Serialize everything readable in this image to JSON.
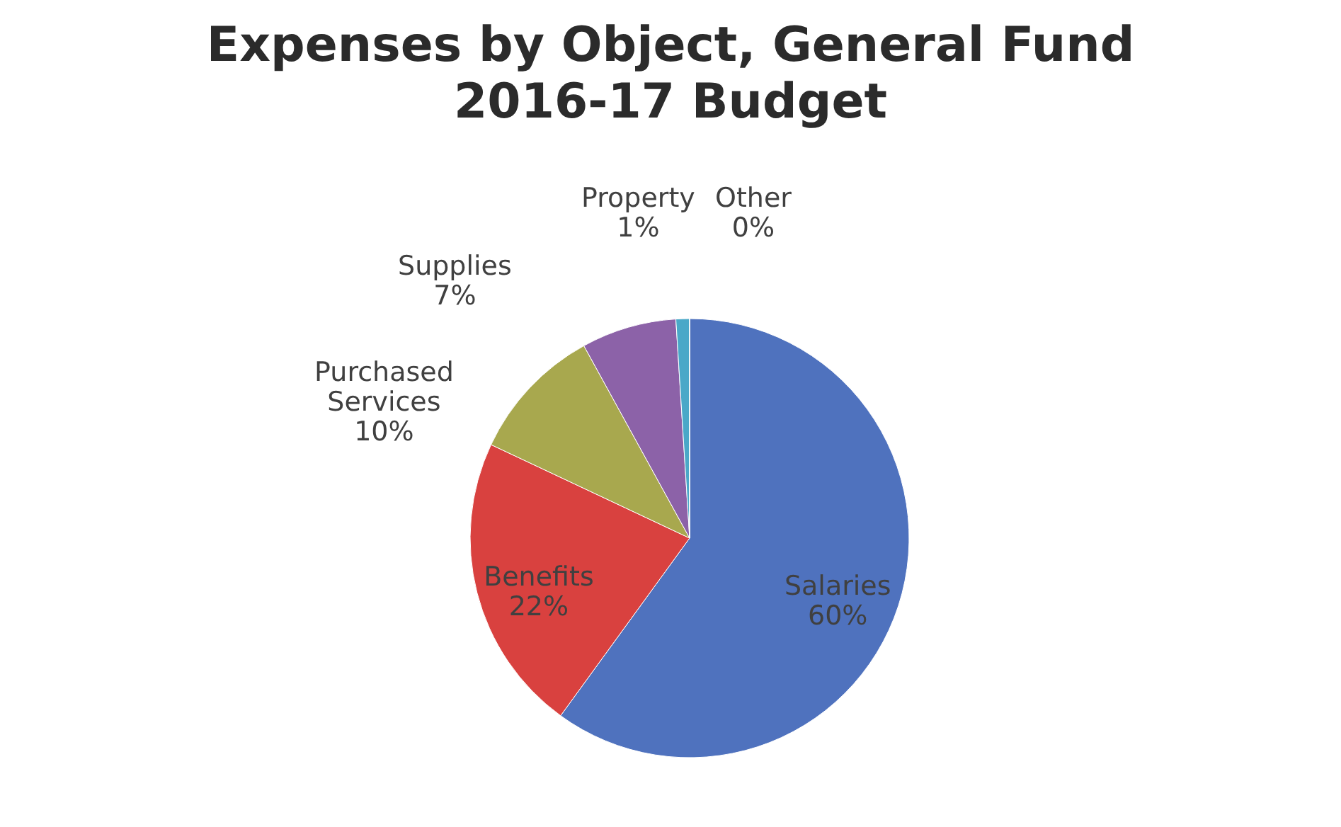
{
  "chart_data": {
    "type": "pie",
    "title": "Expenses by Object, General Fund",
    "subtitle": "2016-17 Budget",
    "categories": [
      "Salaries",
      "Benefits",
      "Purchased Services",
      "Supplies",
      "Property",
      "Other"
    ],
    "values": [
      60,
      22,
      10,
      7,
      1,
      0
    ],
    "value_labels": [
      "60%",
      "22%",
      "10%",
      "7%",
      "1%",
      "0%"
    ],
    "colors": [
      "#4f72be",
      "#d9413f",
      "#a8a84e",
      "#8c62a8",
      "#4aa8c8",
      "#e8892a"
    ],
    "legend": false
  }
}
